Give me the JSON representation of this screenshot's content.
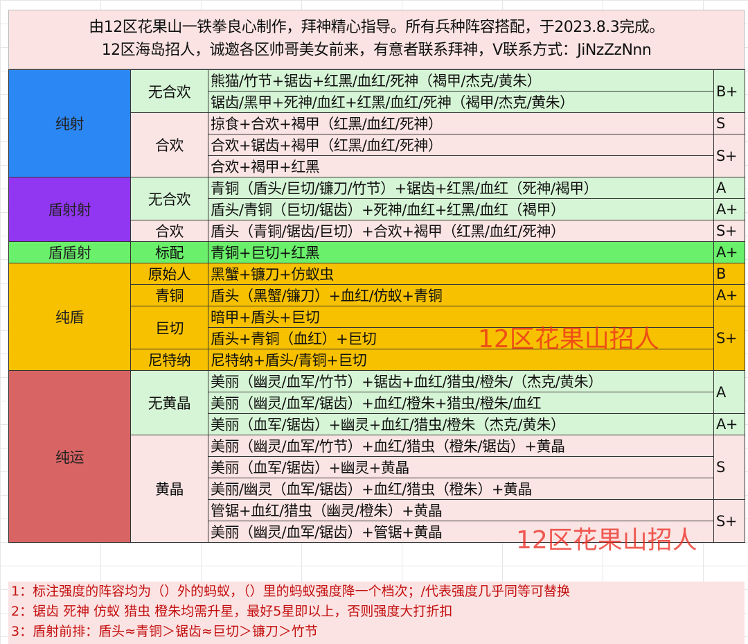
{
  "header": {
    "line1": "由12区花果山一铁拳良心制作，拜神精心指导。所有兵种阵容搭配，于2023.8.3完成。",
    "line2": "12区海岛招人，诚邀各区帅哥美女前来，有意者联系拜神，V联系方式：JiNzZzNnn"
  },
  "groups": [
    {
      "name": "纯射",
      "color": "#2b87f3",
      "subgroups": [
        {
          "name": "无合欢",
          "color": "#d6f5d6",
          "rows": [
            "熊猫/竹节+锯齿+红黑/血红/死神（褐甲/杰克/黄朱）",
            "锯齿/黑甲+死神/血红+红黑/血红/死神（褐甲/杰克/黄朱）"
          ]
        },
        {
          "name": "合欢",
          "color": "#fbe4e4",
          "rows": [
            "掠食+合欢+褐甲（红黑/血红/死神）",
            "合欢+锯齿+褐甲（红黑/血红/死神）",
            "合欢+褐甲+红黑"
          ]
        }
      ]
    },
    {
      "name": "盾射射",
      "color": "#9137f2",
      "subgroups": [
        {
          "name": "无合欢",
          "color": "#d6f5d6",
          "rows": [
            "青铜（盾头/巨切/镰刀/竹节）+锯齿+红黑/血红（死神/褐甲）",
            "盾头/青铜（巨切/锯齿）+死神/血红+红黑/血红（褐甲）"
          ]
        },
        {
          "name": "合欢",
          "color": "#fbe4e4",
          "rows": [
            "盾头（青铜/锯齿/巨切）+合欢+褐甲（红黑/血红/死神）"
          ]
        }
      ]
    },
    {
      "name": "盾盾射",
      "color": "#6af06a",
      "subgroups": [
        {
          "name": "标配",
          "color": "#6af06a",
          "rows": [
            "青铜+巨切+红黑"
          ]
        }
      ]
    },
    {
      "name": "纯盾",
      "color": "#f7c100",
      "subgroups": [
        {
          "name": "原始人",
          "color": "#f7c100",
          "rows": [
            "黑蟹+镰刀+仿蚁虫"
          ]
        },
        {
          "name": "青铜",
          "color": "#f7c100",
          "rows": [
            "盾头（黑蟹/镰刀）+血红/仿蚁+青铜"
          ]
        },
        {
          "name": "巨切",
          "color": "#f7c100",
          "rows": [
            "暗甲+盾头+巨切",
            "盾头+青铜（血红）+巨切"
          ]
        },
        {
          "name": "尼特纳",
          "color": "#f7c100",
          "rows": [
            "尼特纳+盾头/青铜+巨切"
          ]
        }
      ]
    },
    {
      "name": "纯运",
      "color": "#d96464",
      "subgroups": [
        {
          "name": "无黄晶",
          "color": "#d6f5d6",
          "rows": [
            "美丽（幽灵/血军/竹节）+锯齿+血红/猎虫/橙朱/（杰克/黄朱）",
            "美丽（幽灵/血军/锯齿）+血红/橙朱+猎虫/橙朱/血红",
            "美丽（血军/锯齿）+幽灵+血红/猎虫/橙朱（杰克/黄朱）"
          ]
        },
        {
          "name": "黄晶",
          "color": "#fbe4e4",
          "rows": [
            "美丽（幽灵/血军/竹节）+血红/猎虫（橙朱/锯齿）+黄晶",
            "美丽（血军/锯齿）+幽灵+黄晶",
            "美丽/幽灵（血军/锯齿）+血红/猎虫（橙朱）+黄晶",
            "管锯+血红/猎虫（幽灵/橙朱）+黄晶",
            "美丽（幽灵/血军/锯齿）+管锯+黄晶"
          ]
        }
      ]
    }
  ],
  "grades": [
    {
      "grade": "B+",
      "span": 2,
      "color": "#d6f5d6"
    },
    {
      "grade": "S",
      "span": 1,
      "color": "#fbe4e4"
    },
    {
      "grade": "S+",
      "span": 2,
      "color": "#fbe4e4"
    },
    {
      "grade": "A",
      "span": 1,
      "color": "#d6f5d6"
    },
    {
      "grade": "A+",
      "span": 1,
      "color": "#d6f5d6"
    },
    {
      "grade": "S+",
      "span": 1,
      "color": "#fbe4e4"
    },
    {
      "grade": "A+",
      "span": 1,
      "color": "#6af06a"
    },
    {
      "grade": "B",
      "span": 1,
      "color": "#f7c100"
    },
    {
      "grade": "A+",
      "span": 1,
      "color": "#f7c100"
    },
    {
      "grade": "S+",
      "span": 3,
      "color": "#f7c100"
    },
    {
      "grade": "A",
      "span": 2,
      "color": "#d6f5d6"
    },
    {
      "grade": "A+",
      "span": 1,
      "color": "#d6f5d6"
    },
    {
      "grade": "S",
      "span": 3,
      "color": "#fbe4e4"
    },
    {
      "grade": "S+",
      "span": 2,
      "color": "#fbe4e4"
    }
  ],
  "notes": [
    "1：标注强度的阵容均为（）外的蚂蚁，（）里的蚂蚁强度降一个档次；/代表强度几乎同等可替换",
    "2：锯齿 死神 仿蚁 猎虫 橙朱均需升星，最好5星即以上，否则强度大打折扣",
    "3：盾射前排：盾头≈青铜＞锯齿≈巨切＞镰刀＞竹节"
  ],
  "watermark": "12区花果山招人"
}
